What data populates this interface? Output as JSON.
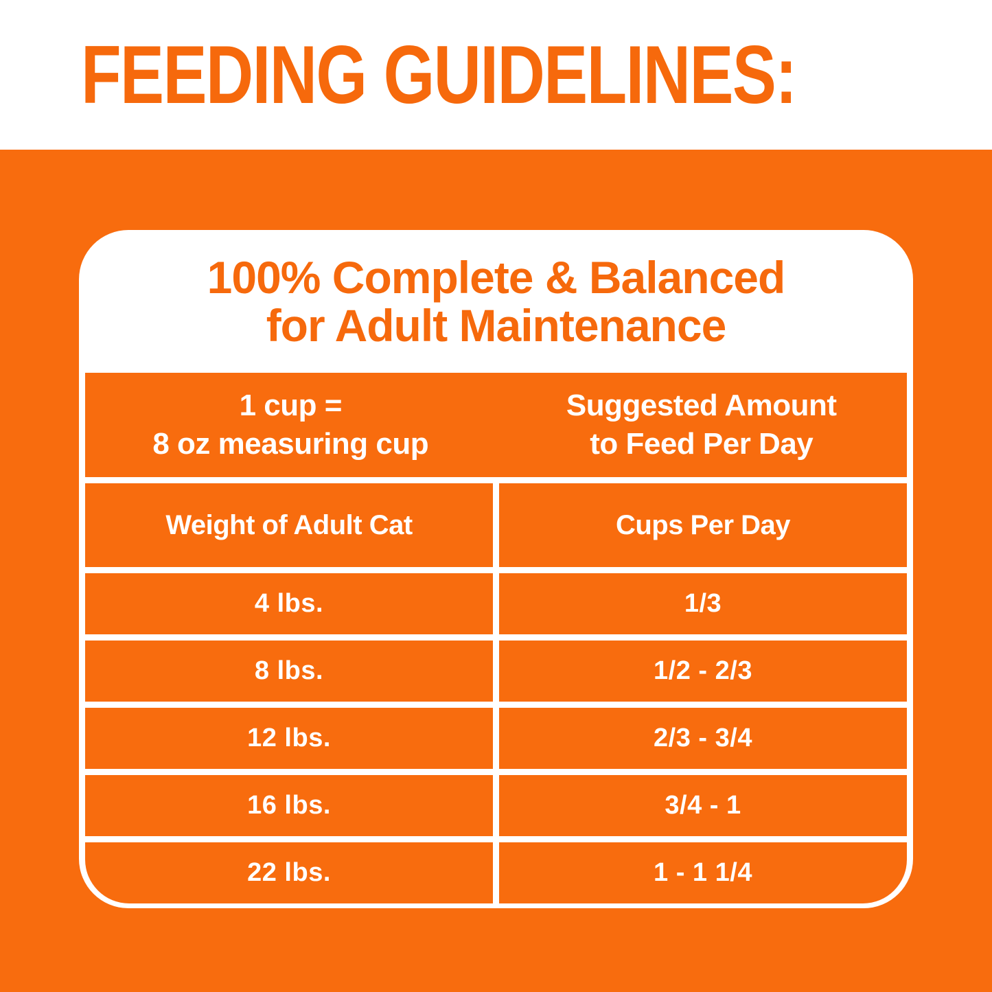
{
  "page": {
    "heading": "FEEDING GUIDELINES:"
  },
  "colors": {
    "accent_orange": "#f6690c",
    "background_orange": "#f86c0e",
    "card_white": "#ffffff",
    "table_text_white": "#ffffff"
  },
  "chart_data": {
    "type": "table",
    "title_lines": [
      "100% Complete & Balanced",
      "for Adult Maintenance"
    ],
    "header_left_lines": [
      "1 cup =",
      "8 oz measuring cup"
    ],
    "header_right_lines": [
      "Suggested Amount",
      "to Feed Per Day"
    ],
    "columns": [
      "Weight of Adult Cat",
      "Cups Per Day"
    ],
    "rows": [
      [
        "4 lbs.",
        "1/3"
      ],
      [
        "8 lbs.",
        "1/2 - 2/3"
      ],
      [
        "12 lbs.",
        "2/3 - 3/4"
      ],
      [
        "16 lbs.",
        "3/4 - 1"
      ],
      [
        "22 lbs.",
        "1 - 1 1/4"
      ]
    ]
  }
}
